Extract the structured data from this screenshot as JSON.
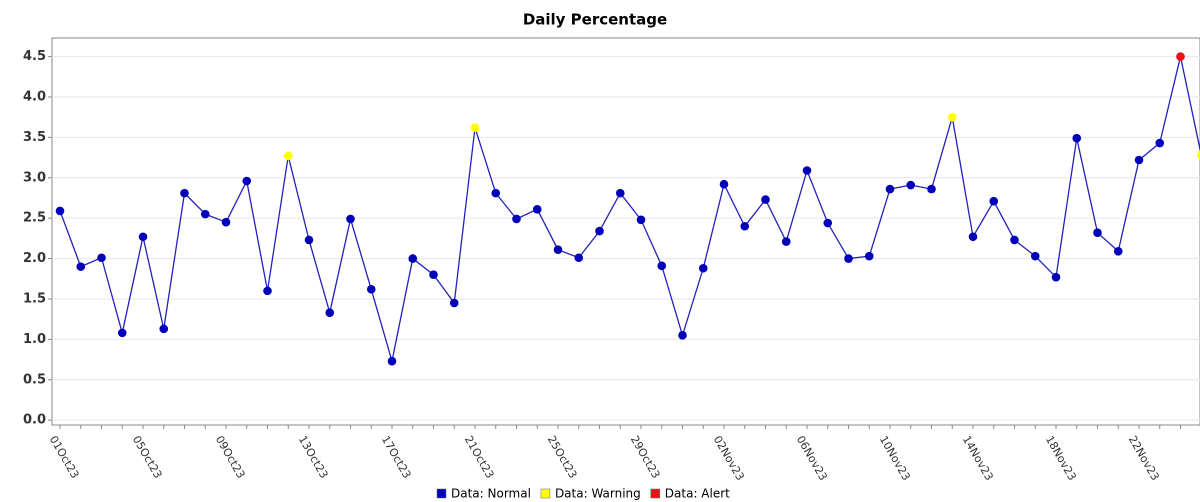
{
  "chart_data": {
    "type": "line",
    "title": "Daily Percentage",
    "categories": [
      "01Oct23",
      null,
      null,
      null,
      "05Oct23",
      null,
      null,
      null,
      "09Oct23",
      null,
      null,
      null,
      "13Oct23",
      null,
      null,
      null,
      "17Oct23",
      null,
      null,
      null,
      "21Oct23",
      null,
      null,
      null,
      "25Oct23",
      null,
      null,
      null,
      "29Oct23",
      null,
      null,
      null,
      "02Nov23",
      null,
      null,
      null,
      "06Nov23",
      null,
      null,
      null,
      "10Nov23",
      null,
      null,
      null,
      "14Nov23",
      null,
      null,
      null,
      "18Nov23",
      null,
      null,
      null,
      "22Nov23",
      null,
      null,
      null
    ],
    "values": [
      2.59,
      1.9,
      2.01,
      1.08,
      2.27,
      1.13,
      2.81,
      2.55,
      2.45,
      2.96,
      1.6,
      3.27,
      2.23,
      1.33,
      2.49,
      1.62,
      0.73,
      2.0,
      1.8,
      1.45,
      3.62,
      2.81,
      2.49,
      2.61,
      2.11,
      2.01,
      2.34,
      2.81,
      2.48,
      1.91,
      1.05,
      1.88,
      2.92,
      2.4,
      2.73,
      2.21,
      3.09,
      2.44,
      2.0,
      2.03,
      2.86,
      2.91,
      2.86,
      3.75,
      2.27,
      2.71,
      2.23,
      2.03,
      1.77,
      3.49,
      2.32,
      2.09,
      3.22,
      3.43,
      4.5,
      3.28
    ],
    "line_color": "#2222bb",
    "point_colors": [
      "#0000bb",
      "#0000bb",
      "#0000bb",
      "#0000bb",
      "#0000bb",
      "#0000bb",
      "#0000bb",
      "#0000bb",
      "#0000bb",
      "#0000bb",
      "#0000bb",
      "#ffff00",
      "#0000bb",
      "#0000bb",
      "#0000bb",
      "#0000bb",
      "#0000bb",
      "#0000bb",
      "#0000bb",
      "#0000bb",
      "#ffff00",
      "#0000bb",
      "#0000bb",
      "#0000bb",
      "#0000bb",
      "#0000bb",
      "#0000bb",
      "#0000bb",
      "#0000bb",
      "#0000bb",
      "#0000bb",
      "#0000bb",
      "#0000bb",
      "#0000bb",
      "#0000bb",
      "#0000bb",
      "#0000bb",
      "#0000bb",
      "#0000bb",
      "#0000bb",
      "#0000bb",
      "#0000bb",
      "#0000bb",
      "#ffff00",
      "#0000bb",
      "#0000bb",
      "#0000bb",
      "#0000bb",
      "#0000bb",
      "#0000bb",
      "#0000bb",
      "#0000bb",
      "#0000bb",
      "#0000bb",
      "#ee1111",
      "#ffff00"
    ],
    "legend": [
      {
        "name": "Data: Normal",
        "color": "#0000bb"
      },
      {
        "name": "Data: Warning",
        "color": "#ffff00"
      },
      {
        "name": "Data: Alert",
        "color": "#ee1111"
      }
    ],
    "ylim": [
      -0.06,
      4.73
    ],
    "yticks": [
      {
        "value": 0,
        "label": "0.0"
      },
      0.5,
      {
        "value": 1,
        "label": "1.0"
      },
      1.5,
      {
        "value": 2,
        "label": "2.0"
      },
      2.5,
      {
        "value": 3,
        "label": "3.0"
      },
      3.5,
      {
        "value": 4,
        "label": "4.0"
      },
      4.5
    ],
    "grid": true
  }
}
